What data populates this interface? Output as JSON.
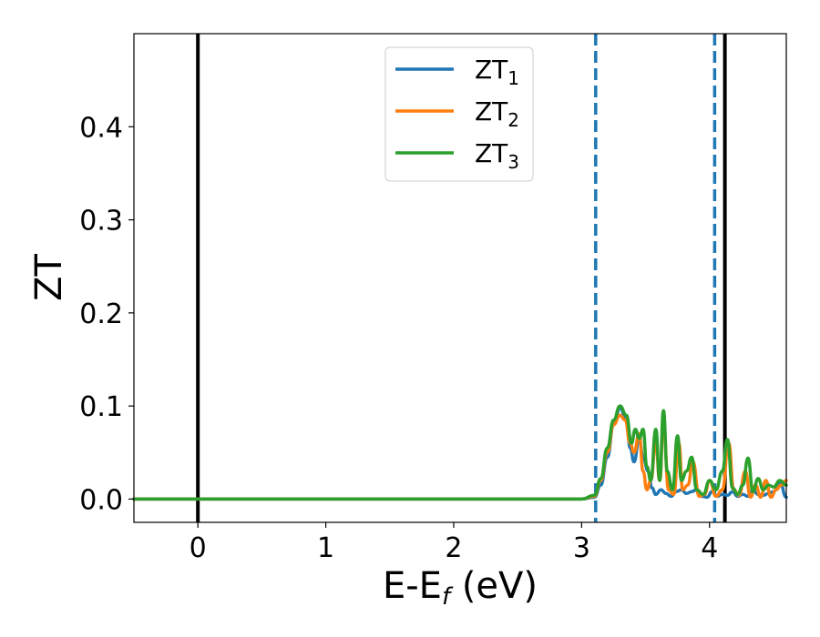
{
  "chart_data": {
    "type": "line",
    "xlabel": {
      "main": "E-E",
      "sub": "f",
      "unit": " (eV)"
    },
    "ylabel": "ZT",
    "xlim": [
      -0.5,
      4.6
    ],
    "ylim": [
      -0.025,
      0.5
    ],
    "x_ticks": [
      0,
      1,
      2,
      3,
      4
    ],
    "x_tick_labels": [
      "0",
      "1",
      "2",
      "3",
      "4"
    ],
    "y_ticks": [
      0.0,
      0.1,
      0.2,
      0.3,
      0.4
    ],
    "y_tick_labels": [
      "0.0",
      "0.1",
      "0.2",
      "0.3",
      "0.4"
    ],
    "grid": false,
    "legend_position": "top-center",
    "vertical_lines": [
      {
        "x": 0.0,
        "style": "solid",
        "color": "#000000"
      },
      {
        "x": 3.11,
        "style": "dashed",
        "color": "#1f77b4"
      },
      {
        "x": 4.04,
        "style": "dashed",
        "color": "#1f77b4"
      },
      {
        "x": 4.12,
        "style": "solid",
        "color": "#000000"
      }
    ],
    "series": [
      {
        "name": "ZT",
        "name_sub": "1",
        "color": "#1f77b4",
        "x": [
          -0.5,
          3.0,
          3.1,
          3.15,
          3.2,
          3.25,
          3.3,
          3.35,
          3.38,
          3.41,
          3.45,
          3.48,
          3.52,
          3.55,
          3.58,
          3.62,
          3.66,
          3.7,
          3.74,
          3.78,
          3.82,
          3.86,
          3.9,
          3.94,
          3.98,
          4.02,
          4.06,
          4.1,
          4.14,
          4.18,
          4.22,
          4.26,
          4.3,
          4.34,
          4.38,
          4.42,
          4.46,
          4.5,
          4.55,
          4.6
        ],
        "y": [
          0.0,
          0.0,
          0.002,
          0.015,
          0.045,
          0.08,
          0.098,
          0.085,
          0.055,
          0.04,
          0.065,
          0.045,
          0.03,
          0.012,
          0.005,
          0.01,
          0.006,
          0.003,
          0.008,
          0.01,
          0.006,
          0.008,
          0.01,
          0.003,
          0.002,
          0.008,
          0.003,
          0.005,
          0.004,
          0.008,
          0.003,
          0.005,
          0.003,
          0.01,
          0.005,
          0.004,
          0.006,
          0.008,
          0.018,
          0.002
        ]
      },
      {
        "name": "ZT",
        "name_sub": "2",
        "color": "#ff7f0e",
        "x": [
          -0.5,
          3.0,
          3.1,
          3.15,
          3.2,
          3.25,
          3.3,
          3.34,
          3.38,
          3.41,
          3.45,
          3.48,
          3.51,
          3.54,
          3.58,
          3.61,
          3.64,
          3.68,
          3.72,
          3.76,
          3.79,
          3.83,
          3.87,
          3.92,
          3.96,
          4.0,
          4.05,
          4.1,
          4.15,
          4.19,
          4.23,
          4.28,
          4.32,
          4.36,
          4.4,
          4.44,
          4.48,
          4.52,
          4.56,
          4.6
        ],
        "y": [
          0.0,
          0.0,
          0.003,
          0.02,
          0.05,
          0.08,
          0.09,
          0.085,
          0.06,
          0.05,
          0.07,
          0.03,
          0.01,
          0.02,
          0.06,
          0.02,
          0.08,
          0.01,
          0.005,
          0.06,
          0.01,
          0.015,
          0.04,
          0.003,
          0.005,
          0.02,
          0.003,
          0.01,
          0.06,
          0.01,
          0.004,
          0.03,
          0.002,
          0.015,
          0.002,
          0.02,
          0.002,
          0.01,
          0.015,
          0.02
        ]
      },
      {
        "name": "ZT",
        "name_sub": "3",
        "color": "#2ca02c",
        "x": [
          -0.5,
          3.0,
          3.1,
          3.15,
          3.2,
          3.25,
          3.3,
          3.35,
          3.39,
          3.42,
          3.45,
          3.48,
          3.51,
          3.54,
          3.58,
          3.61,
          3.64,
          3.67,
          3.71,
          3.75,
          3.78,
          3.82,
          3.86,
          3.9,
          3.95,
          4.0,
          4.05,
          4.1,
          4.14,
          4.18,
          4.22,
          4.26,
          4.3,
          4.34,
          4.38,
          4.42,
          4.46,
          4.5,
          4.55,
          4.6
        ],
        "y": [
          0.0,
          0.0,
          0.004,
          0.022,
          0.055,
          0.085,
          0.1,
          0.09,
          0.06,
          0.075,
          0.065,
          0.075,
          0.035,
          0.02,
          0.075,
          0.02,
          0.095,
          0.03,
          0.01,
          0.068,
          0.02,
          0.03,
          0.045,
          0.01,
          0.005,
          0.02,
          0.01,
          0.03,
          0.064,
          0.012,
          0.005,
          0.015,
          0.044,
          0.008,
          0.022,
          0.01,
          0.015,
          0.013,
          0.02,
          0.015
        ]
      }
    ]
  }
}
